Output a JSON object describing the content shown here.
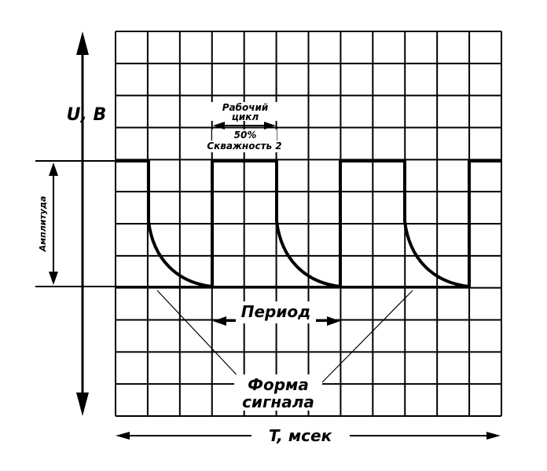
{
  "labels": {
    "voltage_axis": "U, B",
    "time_axis": "T, мсек",
    "amplitude": "Амплитуда",
    "period": "Период",
    "duty_line1": "Рабочий",
    "duty_line2": "цикл",
    "duty_line3": "50%",
    "duty_line4": "Скважность 2",
    "waveform_line1": "Форма",
    "waveform_line2": "сигнала"
  },
  "grid": {
    "columns": 12,
    "rows": 12
  },
  "colors": {
    "ink": "#000000",
    "background": "#ffffff"
  }
}
